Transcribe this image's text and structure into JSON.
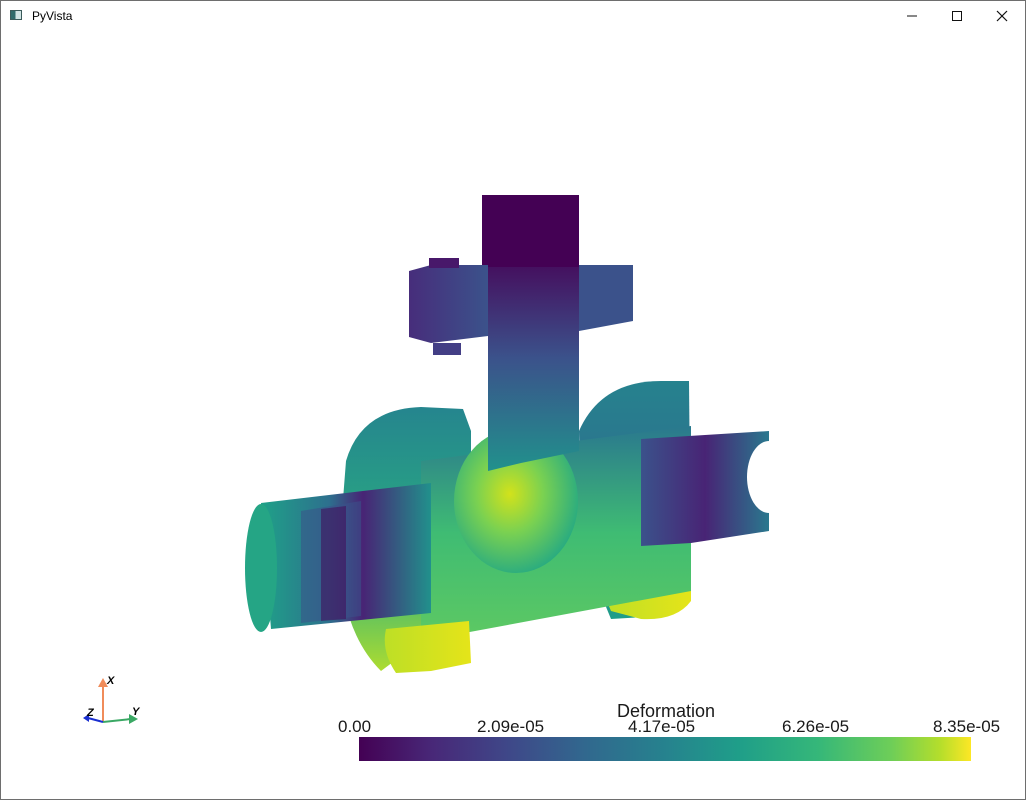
{
  "window": {
    "title": "PyVista",
    "minimize_icon": "minimize-icon",
    "maximize_icon": "maximize-icon",
    "close_icon": "close-icon"
  },
  "scalar_bar": {
    "title": "Deformation",
    "ticks": [
      "0.00",
      "2.09e-05",
      "4.17e-05",
      "6.26e-05",
      "8.35e-05"
    ],
    "colormap": [
      "#440154",
      "#482878",
      "#3e4989",
      "#31688e",
      "#26828e",
      "#1f9e89",
      "#35b779",
      "#6ece58",
      "#b5de2b",
      "#fde725"
    ]
  },
  "axes": {
    "x_label": "X",
    "y_label": "Y",
    "z_label": "Z",
    "x_color": "#f08c5a",
    "y_color": "#3aa864",
    "z_color": "#1a2fd0"
  }
}
